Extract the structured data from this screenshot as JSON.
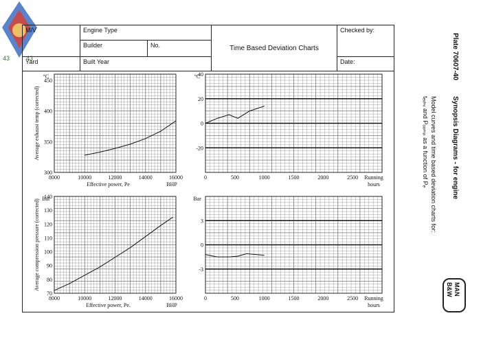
{
  "header": {
    "mv_label": "M/V",
    "yard_label": "Yard",
    "engine_type_label": "Engine Type",
    "builder_label": "Builder",
    "no_label": "No.",
    "built_year_label": "Built Year",
    "title": "Time Based Deviation Charts",
    "checked_by_label": "Checked by:",
    "date_label": "Date:"
  },
  "logo": {
    "left_num": "43",
    "right_num": "43"
  },
  "side": {
    "plate": "Plate  70607-40",
    "synopsis": "Synopsis Diagrams - for engine",
    "model_line1": "Model curves and time based deviation charts for:",
    "model_line2": "tₑₓₕᵥ  and  Pₒₒₘₚ  as a function of  Pₑ",
    "brand_top": "MAN",
    "brand_bottom": "B&W"
  },
  "chart_data": [
    {
      "type": "line",
      "id": "exhaust-temp",
      "unit_label": "°C",
      "ylabel": "Average exhaust temp (corrected)",
      "xlabel": "Effective power, Pe",
      "x_unit": "BHP",
      "x": [
        10000,
        11000,
        12000,
        13000,
        14000,
        15000,
        16000
      ],
      "y": [
        328,
        333,
        339,
        346,
        355,
        367,
        384
      ],
      "xlim": [
        8000,
        16000
      ],
      "ylim": [
        300,
        460
      ],
      "xticks": [
        8000,
        10000,
        12000,
        14000,
        16000
      ],
      "yticks": [
        300,
        350,
        400,
        450
      ],
      "grid": true
    },
    {
      "type": "line",
      "id": "exhaust-deviation",
      "unit_label": "°C",
      "xlabel": "Running hours",
      "x": [
        0,
        200,
        400,
        550,
        750,
        1000
      ],
      "y": [
        0,
        4,
        7,
        4,
        10,
        14
      ],
      "xlim": [
        0,
        3000
      ],
      "ylim": [
        -40,
        40
      ],
      "xticks": [
        0,
        500,
        1000,
        1500,
        2000,
        2500
      ],
      "yticks": [
        -20,
        0,
        20,
        40
      ],
      "bold_lines": [
        20,
        0,
        -20
      ],
      "grid": true
    },
    {
      "type": "line",
      "id": "compression-pressure",
      "unit_label": "Bar",
      "ylabel": "Average compression pressure (corrected)",
      "xlabel": "Effective power, Pe.",
      "x_unit": "BHP",
      "x": [
        8000,
        9000,
        10000,
        11000,
        12000,
        13000,
        14000,
        15000,
        15800
      ],
      "y": [
        72,
        77,
        83,
        89,
        96,
        103,
        111,
        119,
        125
      ],
      "xlim": [
        8000,
        16000
      ],
      "ylim": [
        70,
        140
      ],
      "xticks": [
        8000,
        10000,
        12000,
        14000,
        16000
      ],
      "yticks": [
        70,
        80,
        90,
        100,
        110,
        120,
        130,
        140
      ],
      "grid": true
    },
    {
      "type": "line",
      "id": "pressure-deviation",
      "unit_label": "Bar",
      "xlabel": "Running hours",
      "x": [
        0,
        200,
        400,
        550,
        700,
        1000
      ],
      "y": [
        -1.2,
        -1.5,
        -1.5,
        -1.4,
        -1.1,
        -1.3
      ],
      "xlim": [
        0,
        3000
      ],
      "ylim": [
        -6,
        6
      ],
      "xticks": [
        0,
        500,
        1000,
        1500,
        2000,
        2500
      ],
      "yticks": [
        -3,
        0,
        3
      ],
      "bold_lines": [
        3,
        0,
        -3
      ],
      "grid": true
    }
  ]
}
